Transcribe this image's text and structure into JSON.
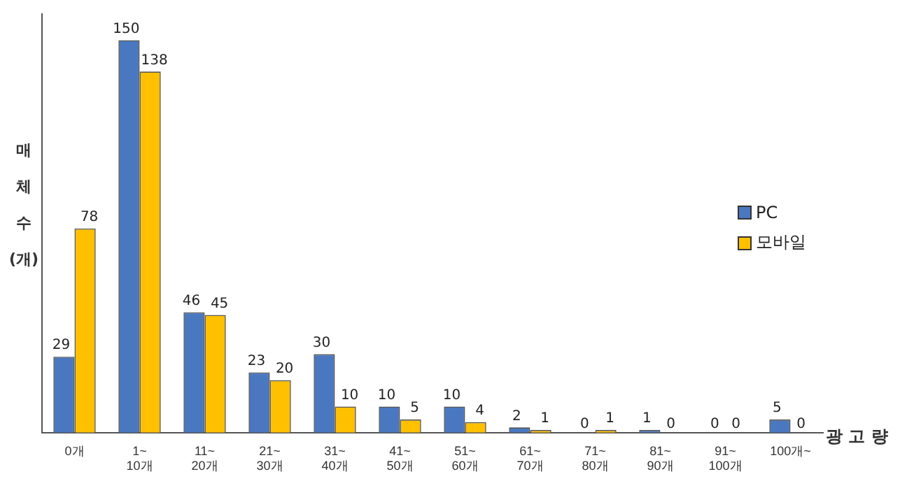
{
  "chart_data": {
    "type": "bar",
    "ylabel": "매 체 수 (개)",
    "xlabel": "광 고 량",
    "categories": [
      "0개",
      "1~ 10개",
      "11~ 20개",
      "21~ 30개",
      "31~ 40개",
      "41~ 50개",
      "51~ 60개",
      "61~ 70개",
      "71~ 80개",
      "81~ 90개",
      "91~ 100개",
      "100개~"
    ],
    "series": [
      {
        "name": "PC",
        "color": "#4a78c0",
        "values": [
          29,
          150,
          46,
          23,
          30,
          10,
          10,
          2,
          0,
          1,
          0,
          5
        ]
      },
      {
        "name": "모바일",
        "color": "#ffc000",
        "values": [
          78,
          138,
          45,
          20,
          10,
          5,
          4,
          1,
          1,
          0,
          0,
          0
        ]
      }
    ],
    "data_labels": true,
    "grid": false,
    "legend": "right"
  }
}
